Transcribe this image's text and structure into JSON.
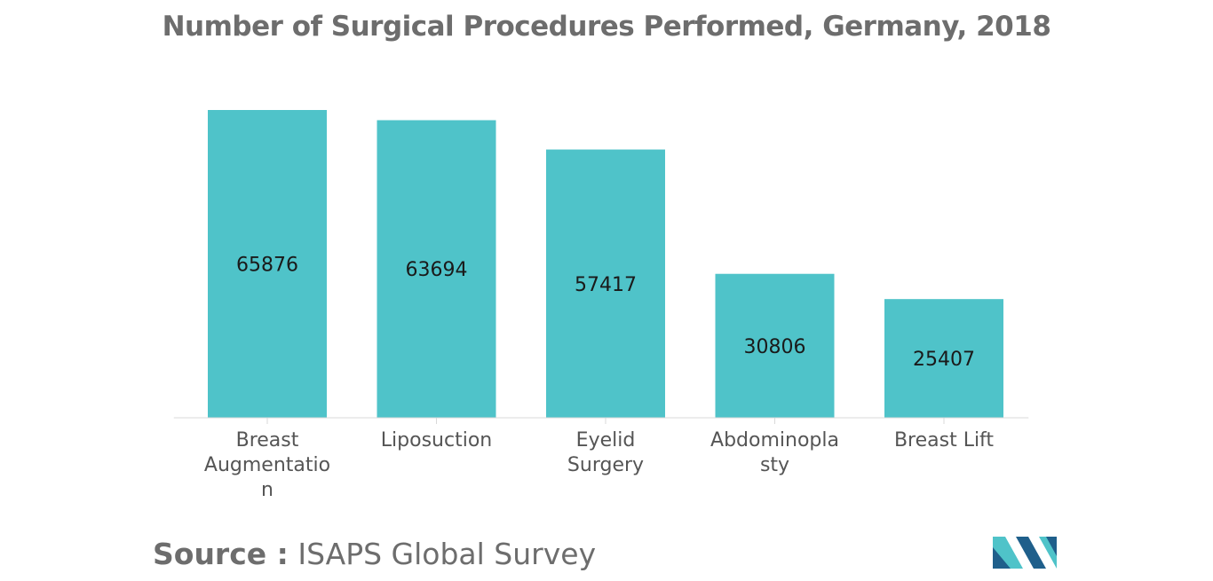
{
  "chart_data": {
    "type": "bar",
    "title": "Number of Surgical Procedures Performed, Germany, 2018",
    "categories": [
      [
        "Breast",
        "Augmentatio",
        "n"
      ],
      [
        "Liposuction"
      ],
      [
        "Eyelid",
        "Surgery"
      ],
      [
        "Abdominopla",
        "sty"
      ],
      [
        "Breast Lift"
      ]
    ],
    "values": [
      65876,
      63694,
      57417,
      30806,
      25407
    ],
    "ylim": [
      0,
      65876
    ],
    "grid": false,
    "bar_color": "#4fc3c9"
  },
  "source": {
    "label": "Source :",
    "text": "ISAPS Global Survey"
  },
  "logo": {
    "icon": "mordor-intelligence-logo",
    "color_dark": "#1f5f8b",
    "color_light": "#4fc3c9"
  }
}
